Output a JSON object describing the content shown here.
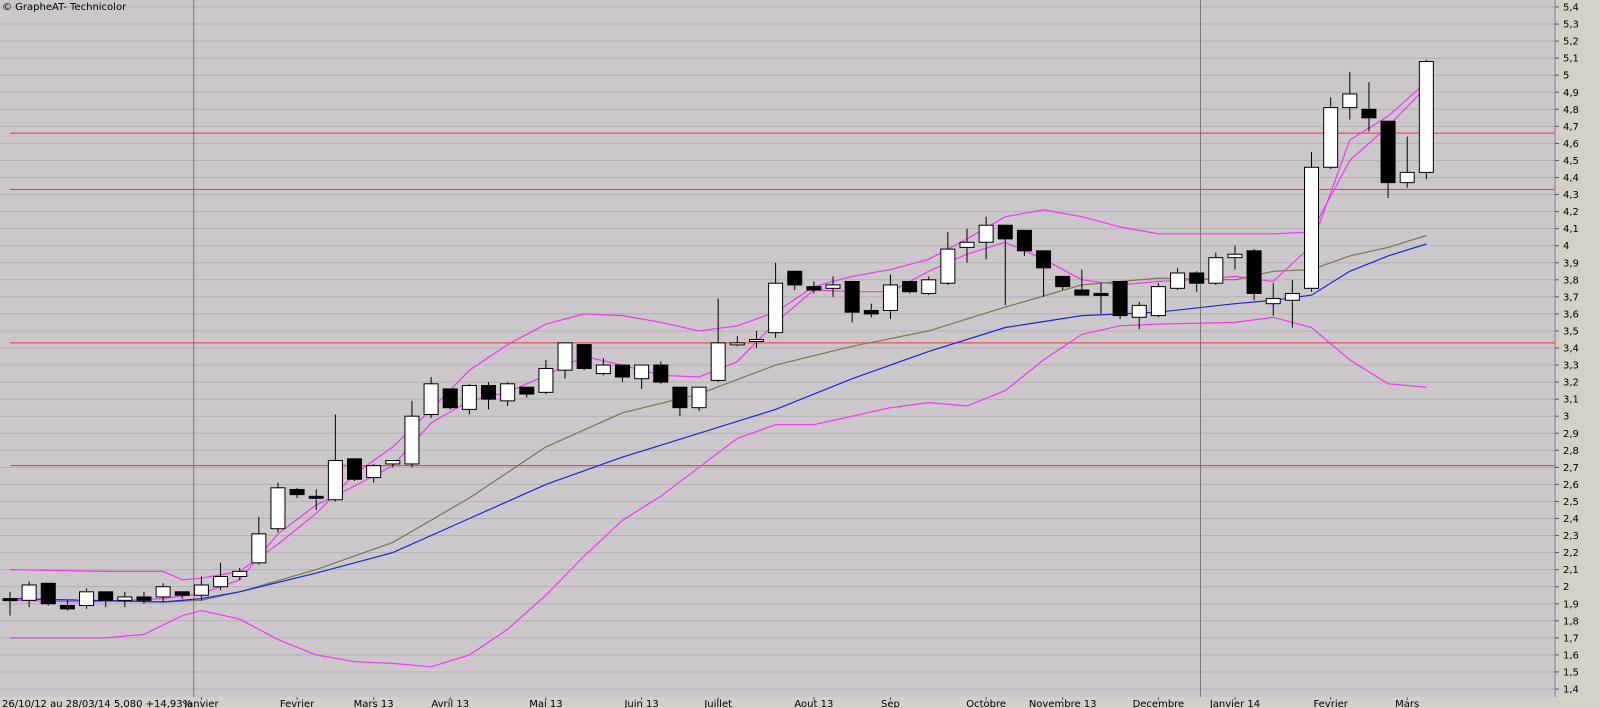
{
  "window": {
    "title": "© GrapheAT- Technicolor"
  },
  "footer": {
    "range_text": "26/10/12 au 28/03/14 5,080 +14,93%"
  },
  "colors": {
    "plot_bg": "#cbc7cb",
    "grid": "#b4b0b4",
    "resistance": "#ff3030",
    "bollinger": "#ee3cee",
    "ma_short": "#ee3cee",
    "ma_mid": "#807850",
    "ma_long": "#1a2ad8",
    "month_divider": "#7c7c7c"
  },
  "chart_data": {
    "type": "candlestick",
    "title": "Technicolor",
    "ylim": [
      1.4,
      5.4
    ],
    "y_ticks": [
      "1,4",
      "1,5",
      "1,6",
      "1,7",
      "1,8",
      "1,9",
      "2",
      "2,1",
      "2,2",
      "2,3",
      "2,4",
      "2,5",
      "2,6",
      "2,7",
      "2,8",
      "2,9",
      "3",
      "3,1",
      "3,2",
      "3,3",
      "3,4",
      "3,5",
      "3,6",
      "3,7",
      "3,8",
      "3,9",
      "4",
      "4,1",
      "4,2",
      "4,3",
      "4,4",
      "4,5",
      "4,6",
      "4,7",
      "4,8",
      "4,9",
      "5",
      "5,1",
      "5,2",
      "5,3",
      "5,4"
    ],
    "x_labels": [
      {
        "text": "Janvier",
        "week": 10
      },
      {
        "text": "Fevrier",
        "week": 15
      },
      {
        "text": "Mars 13",
        "week": 19
      },
      {
        "text": "Avril 13",
        "week": 23
      },
      {
        "text": "Mai 13",
        "week": 28
      },
      {
        "text": "Juin 13",
        "week": 33
      },
      {
        "text": "Juillet",
        "week": 37
      },
      {
        "text": "Aout 13",
        "week": 42
      },
      {
        "text": "Sep",
        "week": 46
      },
      {
        "text": "Octobre",
        "week": 51
      },
      {
        "text": "Novembre 13",
        "week": 55
      },
      {
        "text": "Decembre",
        "week": 60
      },
      {
        "text": "Janvier 14",
        "week": 64
      },
      {
        "text": "Fevrier",
        "week": 69
      },
      {
        "text": "Mars",
        "week": 73
      }
    ],
    "year_dividers_week": [
      9.6,
      62.2
    ],
    "horizontal_levels": [
      2.71,
      3.43,
      4.33,
      4.66
    ],
    "candles": [
      [
        1.93,
        1.97,
        1.83,
        1.92
      ],
      [
        1.92,
        2.03,
        1.88,
        2.01
      ],
      [
        2.02,
        2.02,
        1.89,
        1.9
      ],
      [
        1.89,
        1.92,
        1.86,
        1.87
      ],
      [
        1.89,
        1.99,
        1.87,
        1.97
      ],
      [
        1.97,
        1.97,
        1.88,
        1.92
      ],
      [
        1.92,
        1.97,
        1.88,
        1.94
      ],
      [
        1.94,
        1.97,
        1.9,
        1.92
      ],
      [
        1.94,
        2.02,
        1.91,
        2.0
      ],
      [
        1.97,
        1.97,
        1.93,
        1.95
      ],
      [
        1.95,
        2.06,
        1.92,
        2.01
      ],
      [
        2.0,
        2.14,
        1.98,
        2.06
      ],
      [
        2.06,
        2.11,
        2.04,
        2.09
      ],
      [
        2.14,
        2.41,
        2.13,
        2.31
      ],
      [
        2.34,
        2.61,
        2.32,
        2.58
      ],
      [
        2.57,
        2.58,
        2.52,
        2.54
      ],
      [
        2.53,
        2.57,
        2.45,
        2.52
      ],
      [
        2.51,
        3.01,
        2.5,
        2.74
      ],
      [
        2.75,
        2.75,
        2.62,
        2.63
      ],
      [
        2.64,
        2.72,
        2.61,
        2.71
      ],
      [
        2.72,
        2.74,
        2.7,
        2.74
      ],
      [
        2.72,
        3.09,
        2.7,
        3.0
      ],
      [
        3.01,
        3.23,
        2.99,
        3.19
      ],
      [
        3.16,
        3.16,
        3.04,
        3.05
      ],
      [
        3.04,
        3.19,
        3.01,
        3.18
      ],
      [
        3.18,
        3.2,
        3.04,
        3.1
      ],
      [
        3.09,
        3.2,
        3.06,
        3.19
      ],
      [
        3.17,
        3.17,
        3.11,
        3.13
      ],
      [
        3.14,
        3.33,
        3.13,
        3.28
      ],
      [
        3.27,
        3.42,
        3.22,
        3.43
      ],
      [
        3.42,
        3.42,
        3.27,
        3.28
      ],
      [
        3.25,
        3.34,
        3.24,
        3.3
      ],
      [
        3.3,
        3.3,
        3.2,
        3.23
      ],
      [
        3.22,
        3.3,
        3.16,
        3.3
      ],
      [
        3.3,
        3.32,
        3.19,
        3.2
      ],
      [
        3.17,
        3.17,
        3.0,
        3.05
      ],
      [
        3.05,
        3.17,
        3.03,
        3.17
      ],
      [
        3.21,
        3.69,
        3.2,
        3.43
      ],
      [
        3.43,
        3.47,
        3.41,
        3.43
      ],
      [
        3.44,
        3.5,
        3.4,
        3.45
      ],
      [
        3.49,
        3.9,
        3.46,
        3.78
      ],
      [
        3.85,
        3.85,
        3.74,
        3.77
      ],
      [
        3.76,
        3.79,
        3.72,
        3.74
      ],
      [
        3.75,
        3.82,
        3.7,
        3.77
      ],
      [
        3.79,
        3.79,
        3.55,
        3.61
      ],
      [
        3.62,
        3.66,
        3.58,
        3.6
      ],
      [
        3.62,
        3.83,
        3.57,
        3.77
      ],
      [
        3.79,
        3.79,
        3.72,
        3.73
      ],
      [
        3.72,
        3.82,
        3.71,
        3.8
      ],
      [
        3.78,
        4.08,
        3.77,
        3.98
      ],
      [
        3.99,
        4.1,
        3.9,
        4.02
      ],
      [
        4.02,
        4.17,
        3.92,
        4.12
      ],
      [
        4.12,
        4.12,
        3.65,
        4.04
      ],
      [
        4.09,
        4.09,
        3.94,
        3.97
      ],
      [
        3.97,
        3.97,
        3.7,
        3.87
      ],
      [
        3.82,
        3.82,
        3.74,
        3.76
      ],
      [
        3.74,
        3.86,
        3.72,
        3.71
      ],
      [
        3.72,
        3.78,
        3.6,
        3.71
      ],
      [
        3.79,
        3.79,
        3.57,
        3.59
      ],
      [
        3.58,
        3.67,
        3.51,
        3.65
      ],
      [
        3.59,
        3.78,
        3.58,
        3.76
      ],
      [
        3.75,
        3.87,
        3.74,
        3.84
      ],
      [
        3.84,
        3.85,
        3.73,
        3.78
      ],
      [
        3.78,
        3.96,
        3.77,
        3.93
      ],
      [
        3.93,
        4.0,
        3.86,
        3.95
      ],
      [
        3.97,
        3.98,
        3.68,
        3.72
      ],
      [
        3.66,
        3.78,
        3.59,
        3.69
      ],
      [
        3.68,
        3.8,
        3.52,
        3.72
      ],
      [
        3.75,
        4.55,
        3.73,
        4.46
      ],
      [
        4.46,
        4.87,
        4.45,
        4.81
      ],
      [
        4.81,
        5.02,
        4.74,
        4.89
      ],
      [
        4.8,
        4.96,
        4.67,
        4.75
      ],
      [
        4.73,
        4.73,
        4.28,
        4.37
      ],
      [
        4.37,
        4.64,
        4.34,
        4.43
      ],
      [
        4.43,
        5.09,
        4.39,
        5.08
      ]
    ],
    "overlay_lines": {
      "bollinger_upper": [
        [
          0,
          2.1
        ],
        [
          5,
          2.09
        ],
        [
          8,
          2.09
        ],
        [
          9,
          2.04
        ],
        [
          10,
          2.05
        ],
        [
          12,
          2.09
        ],
        [
          14,
          2.25
        ],
        [
          16,
          2.43
        ],
        [
          18,
          2.66
        ],
        [
          20,
          2.82
        ],
        [
          22,
          3.04
        ],
        [
          24,
          3.27
        ],
        [
          26,
          3.42
        ],
        [
          28,
          3.54
        ],
        [
          30,
          3.6
        ],
        [
          32,
          3.59
        ],
        [
          34,
          3.55
        ],
        [
          36,
          3.5
        ],
        [
          38,
          3.53
        ],
        [
          40,
          3.61
        ],
        [
          42,
          3.76
        ],
        [
          44,
          3.82
        ],
        [
          46,
          3.86
        ],
        [
          48,
          3.92
        ],
        [
          50,
          4.04
        ],
        [
          52,
          4.17
        ],
        [
          54,
          4.21
        ],
        [
          56,
          4.17
        ],
        [
          58,
          4.11
        ],
        [
          60,
          4.07
        ],
        [
          64,
          4.07
        ],
        [
          66,
          4.07
        ],
        [
          68,
          4.08
        ],
        [
          70,
          4.5
        ],
        [
          72,
          4.7
        ],
        [
          74,
          4.93
        ]
      ],
      "bollinger_lower": [
        [
          0,
          1.7
        ],
        [
          5,
          1.7
        ],
        [
          7,
          1.72
        ],
        [
          9,
          1.83
        ],
        [
          10,
          1.86
        ],
        [
          12,
          1.81
        ],
        [
          14,
          1.69
        ],
        [
          16,
          1.6
        ],
        [
          18,
          1.56
        ],
        [
          20,
          1.55
        ],
        [
          22,
          1.53
        ],
        [
          24,
          1.6
        ],
        [
          26,
          1.75
        ],
        [
          28,
          1.95
        ],
        [
          30,
          2.18
        ],
        [
          32,
          2.39
        ],
        [
          34,
          2.53
        ],
        [
          36,
          2.7
        ],
        [
          38,
          2.87
        ],
        [
          40,
          2.95
        ],
        [
          42,
          2.95
        ],
        [
          44,
          3.0
        ],
        [
          46,
          3.05
        ],
        [
          48,
          3.08
        ],
        [
          50,
          3.06
        ],
        [
          52,
          3.15
        ],
        [
          54,
          3.33
        ],
        [
          56,
          3.48
        ],
        [
          58,
          3.53
        ],
        [
          60,
          3.54
        ],
        [
          64,
          3.55
        ],
        [
          66,
          3.58
        ],
        [
          68,
          3.52
        ],
        [
          70,
          3.33
        ],
        [
          72,
          3.19
        ],
        [
          74,
          3.17
        ]
      ],
      "ma_short": [
        [
          0,
          1.92
        ],
        [
          4,
          1.91
        ],
        [
          8,
          1.93
        ],
        [
          10,
          1.96
        ],
        [
          12,
          2.04
        ],
        [
          14,
          2.31
        ],
        [
          16,
          2.48
        ],
        [
          18,
          2.59
        ],
        [
          20,
          2.71
        ],
        [
          22,
          2.96
        ],
        [
          24,
          3.09
        ],
        [
          26,
          3.14
        ],
        [
          28,
          3.24
        ],
        [
          30,
          3.35
        ],
        [
          32,
          3.3
        ],
        [
          34,
          3.24
        ],
        [
          36,
          3.23
        ],
        [
          38,
          3.32
        ],
        [
          40,
          3.55
        ],
        [
          42,
          3.74
        ],
        [
          44,
          3.73
        ],
        [
          46,
          3.73
        ],
        [
          48,
          3.85
        ],
        [
          50,
          3.95
        ],
        [
          52,
          4.02
        ],
        [
          54,
          3.92
        ],
        [
          56,
          3.8
        ],
        [
          58,
          3.77
        ],
        [
          60,
          3.79
        ],
        [
          62,
          3.8
        ],
        [
          64,
          3.82
        ],
        [
          66,
          3.79
        ],
        [
          68,
          4.0
        ],
        [
          70,
          4.62
        ],
        [
          72,
          4.76
        ],
        [
          74,
          4.96
        ]
      ],
      "ma_mid": [
        [
          0,
          1.93
        ],
        [
          8,
          1.91
        ],
        [
          10,
          1.92
        ],
        [
          12,
          1.97
        ],
        [
          16,
          2.1
        ],
        [
          20,
          2.26
        ],
        [
          24,
          2.52
        ],
        [
          28,
          2.82
        ],
        [
          32,
          3.02
        ],
        [
          36,
          3.13
        ],
        [
          40,
          3.3
        ],
        [
          44,
          3.41
        ],
        [
          48,
          3.5
        ],
        [
          52,
          3.64
        ],
        [
          56,
          3.77
        ],
        [
          60,
          3.81
        ],
        [
          64,
          3.8
        ],
        [
          66,
          3.85
        ],
        [
          68,
          3.86
        ],
        [
          70,
          3.94
        ],
        [
          72,
          3.99
        ],
        [
          74,
          4.06
        ]
      ],
      "ma_long": [
        [
          0,
          1.93
        ],
        [
          8,
          1.91
        ],
        [
          10,
          1.93
        ],
        [
          12,
          1.97
        ],
        [
          16,
          2.08
        ],
        [
          20,
          2.2
        ],
        [
          24,
          2.4
        ],
        [
          28,
          2.6
        ],
        [
          32,
          2.76
        ],
        [
          36,
          2.9
        ],
        [
          40,
          3.04
        ],
        [
          44,
          3.22
        ],
        [
          48,
          3.38
        ],
        [
          52,
          3.52
        ],
        [
          56,
          3.59
        ],
        [
          60,
          3.61
        ],
        [
          64,
          3.66
        ],
        [
          66,
          3.68
        ],
        [
          68,
          3.71
        ],
        [
          70,
          3.85
        ],
        [
          72,
          3.94
        ],
        [
          74,
          4.01
        ]
      ]
    }
  }
}
